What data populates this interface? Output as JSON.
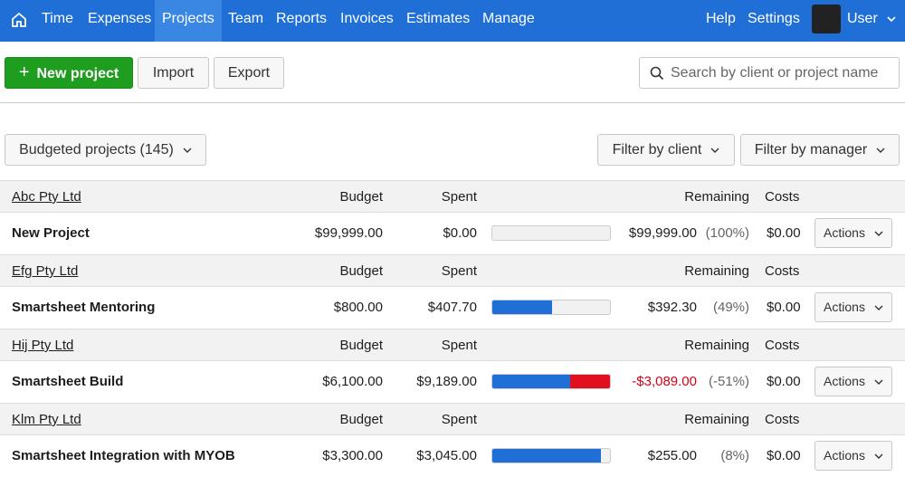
{
  "nav": {
    "items": [
      "Time",
      "Expenses",
      "Projects",
      "Team",
      "Reports",
      "Invoices",
      "Estimates",
      "Manage"
    ],
    "active": 2,
    "help": "Help",
    "settings": "Settings",
    "user": "User"
  },
  "toolbar": {
    "new_project": "New project",
    "import": "Import",
    "export": "Export",
    "search_placeholder": "Search by client or project name"
  },
  "filters": {
    "budgeted": "Budgeted projects (145)",
    "client": "Filter by client",
    "manager": "Filter by manager"
  },
  "groups": [
    {
      "client": "Abc Pty Ltd",
      "budget_header": "Budget",
      "spent_header": "Spent",
      "remaining_header": "Remaining",
      "costs_header": "Costs",
      "project": {
        "name": "New Project",
        "budget": "$99,999.00",
        "spent": "$0.00",
        "remaining": "$99,999.00",
        "percent": "(100%)",
        "costs": "$0.00",
        "action": "Actions",
        "remaining_color": "#1d1d1d"
      }
    },
    {
      "client": "Efg Pty Ltd",
      "budget_header": "Budget",
      "spent_header": "Spent",
      "remaining_header": "Remaining",
      "costs_header": "Costs",
      "project": {
        "name": "Smartsheet Mentoring",
        "budget": "$800.00",
        "spent": "$407.70",
        "remaining": "$392.30",
        "percent": "(49%)",
        "costs": "$0.00",
        "action": "Actions",
        "remaining_color": "#1d1d1d"
      }
    },
    {
      "client": "Hij Pty Ltd",
      "budget_header": "Budget",
      "spent_header": "Spent",
      "remaining_header": "Remaining",
      "costs_header": "Costs",
      "project": {
        "name": "Smartsheet Build",
        "budget": "$6,100.00",
        "spent": "$9,189.00",
        "remaining": "-$3,089.00",
        "percent": "(-51%)",
        "costs": "$0.00",
        "action": "Actions",
        "remaining_color": "#d0021b"
      }
    },
    {
      "client": "Klm Pty Ltd",
      "budget_header": "Budget",
      "spent_header": "Spent",
      "remaining_header": "Remaining",
      "costs_header": "Costs",
      "project": {
        "name": "Smartsheet Integration with MYOB",
        "budget": "$3,300.00",
        "spent": "$3,045.00",
        "remaining": "$255.00",
        "percent": "(8%)",
        "costs": "$0.00",
        "action": "Actions",
        "remaining_color": "#1d1d1d"
      }
    }
  ]
}
